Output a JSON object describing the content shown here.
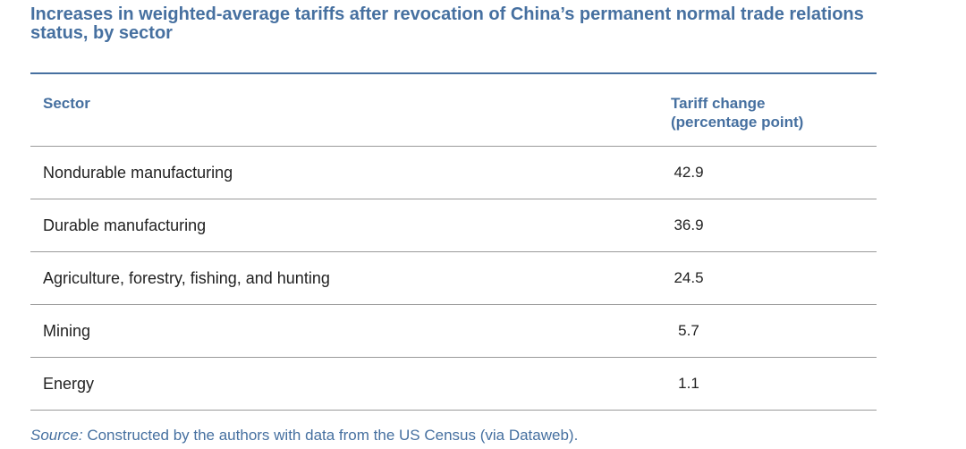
{
  "title": "Increases in weighted-average tariffs after revocation of China’s permanent normal trade relations status, by sector",
  "source": {
    "label": "Source:",
    "text": " Constructed by the authors with data from the US Census (via Dataweb)."
  },
  "colors": {
    "accent": "#4670a0",
    "rule": "#9a9a9a",
    "text": "#222222"
  },
  "chart_data": {
    "type": "table",
    "title": "Increases in weighted-average tariffs after revocation of China’s permanent normal trade relations status, by sector",
    "columns": [
      "Sector",
      "Tariff change\n(percentage point)"
    ],
    "rows": [
      {
        "sector": "Nondurable manufacturing",
        "value": "42.9"
      },
      {
        "sector": "Durable manufacturing",
        "value": "36.9"
      },
      {
        "sector": "Agriculture, forestry, fishing, and hunting",
        "value": "24.5"
      },
      {
        "sector": "Mining",
        "value": "5.7"
      },
      {
        "sector": "Energy",
        "value": "1.1"
      }
    ]
  }
}
